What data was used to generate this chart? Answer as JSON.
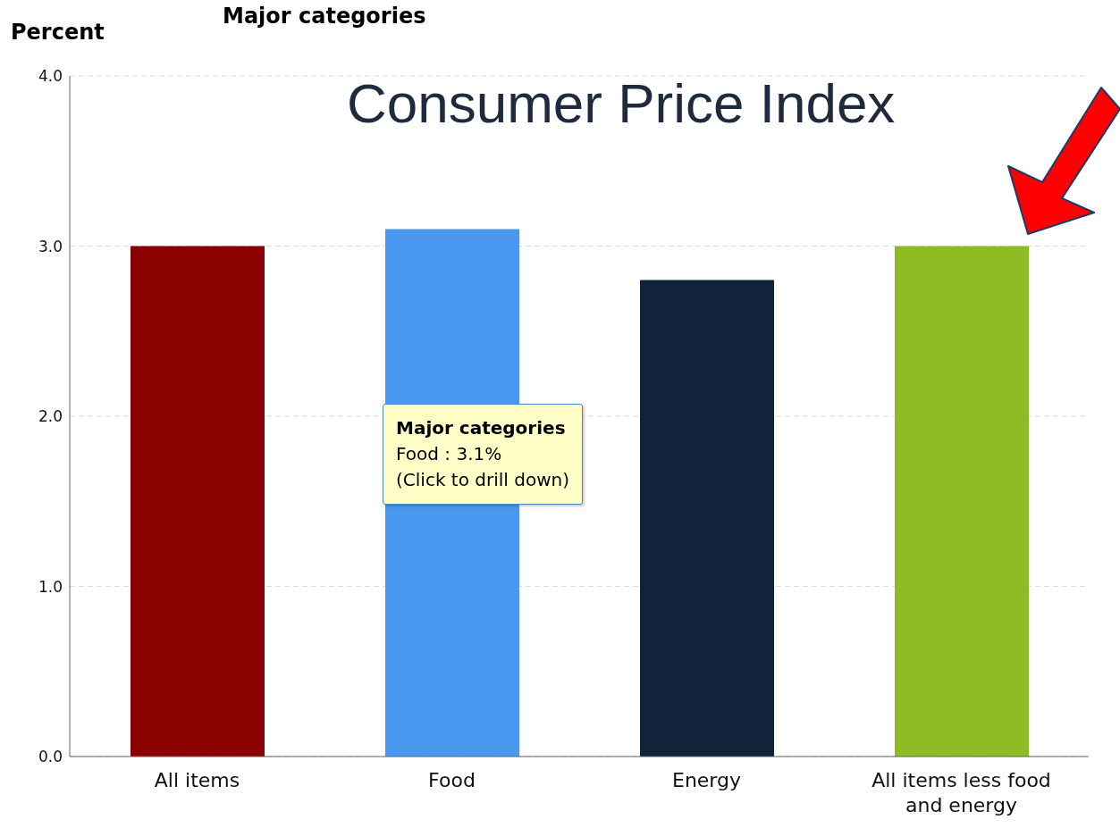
{
  "chart_data": {
    "type": "bar",
    "title": "Major categories",
    "subtitle": "Consumer Price Index",
    "ylabel": "Percent",
    "categories": [
      "All items",
      "Food",
      "Energy",
      "All items less food and energy"
    ],
    "values": [
      3.0,
      3.1,
      2.8,
      3.0
    ],
    "colors": [
      "#8b0000",
      "#4a98f0",
      "#10233a",
      "#8cbb24"
    ],
    "ylim": [
      0,
      4
    ],
    "yticks": [
      {
        "value": 0,
        "label": "0.0"
      },
      {
        "value": 1,
        "label": "1.0"
      },
      {
        "value": 2,
        "label": "2.0"
      },
      {
        "value": 3,
        "label": "3.0"
      },
      {
        "value": 4,
        "label": "4.0"
      }
    ],
    "grid": "y",
    "annotations": [
      "Major categories\nFood : 3.1%\n(Click to drill down)"
    ]
  }
}
